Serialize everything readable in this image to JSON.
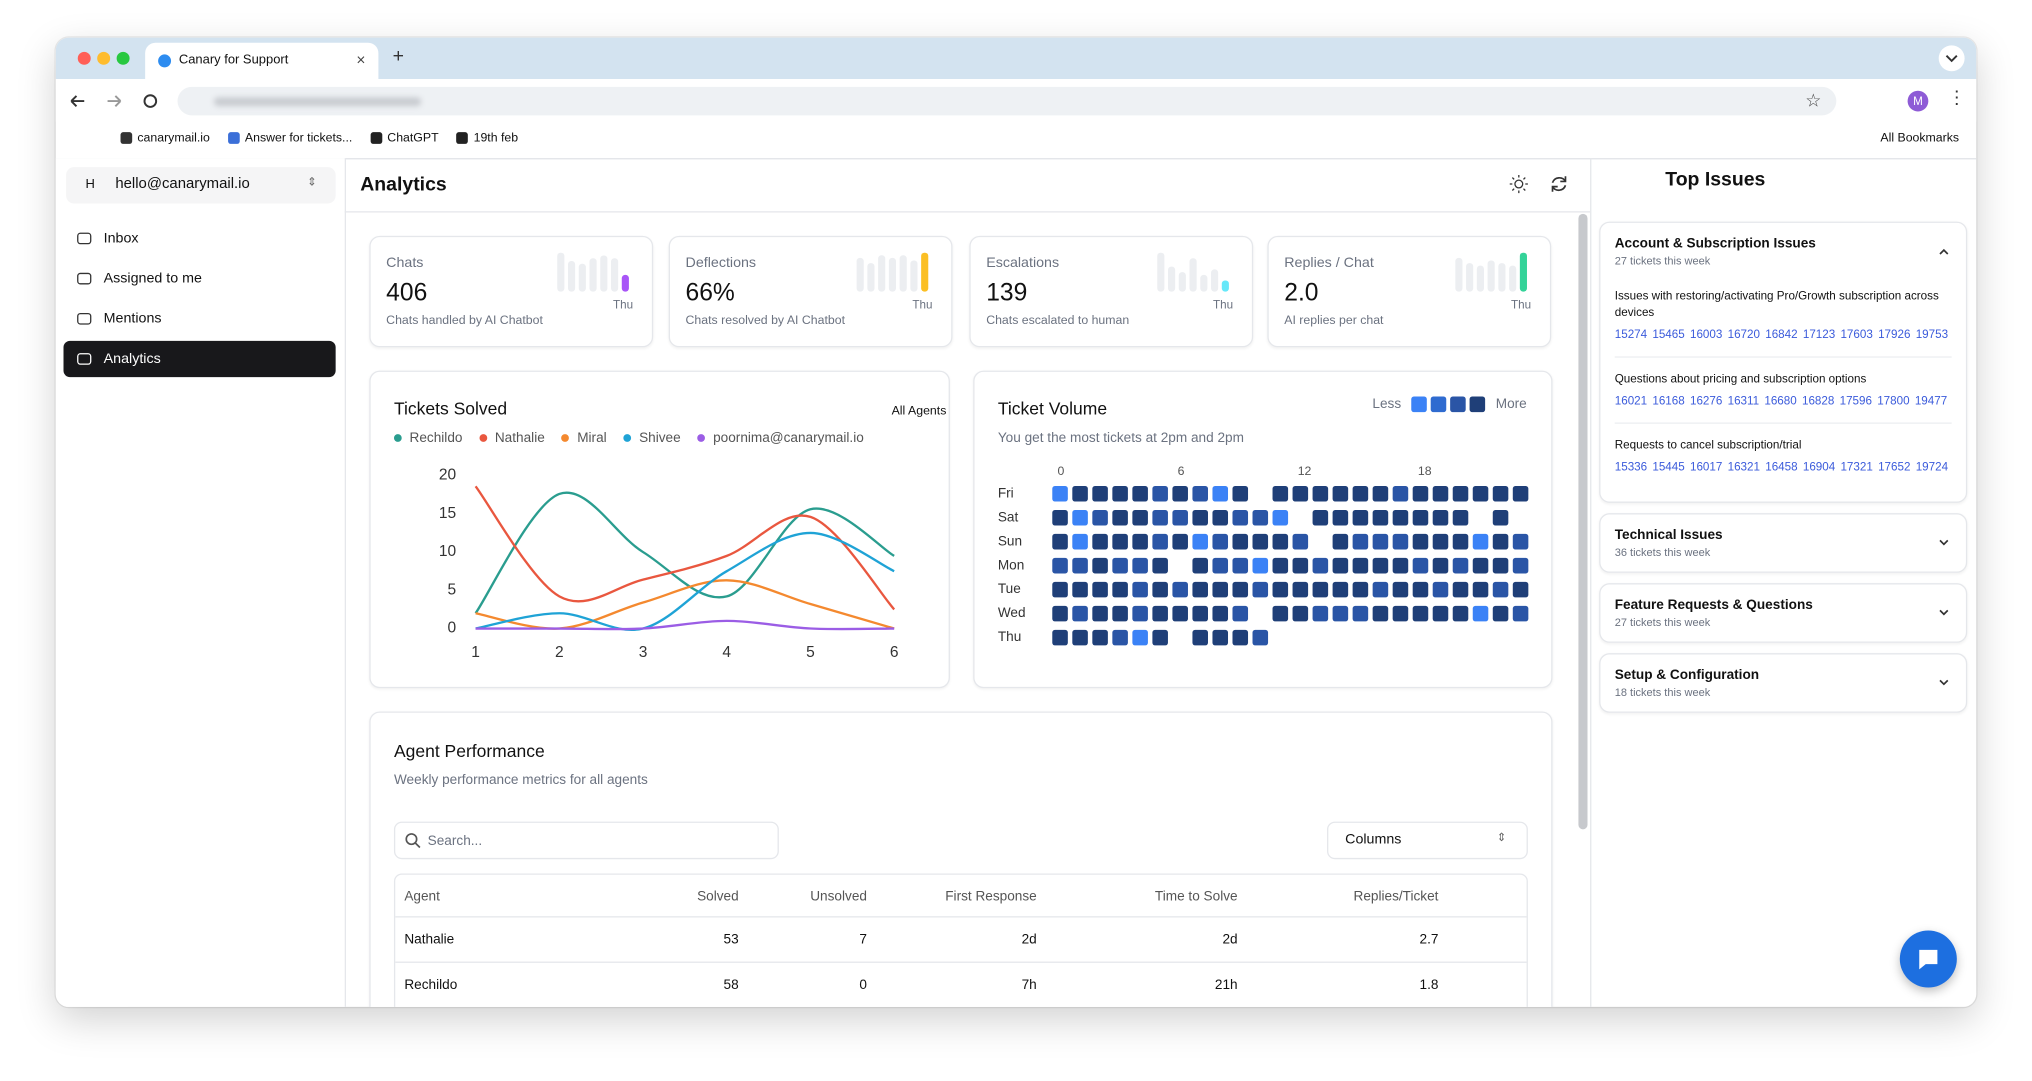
{
  "browser": {
    "tab_title": "Canary for Support",
    "bookmarks": [
      "canarymail.io",
      "Answer for tickets...",
      "ChatGPT",
      "19th feb"
    ],
    "all_bookmarks": "All Bookmarks",
    "profile_initial": "M"
  },
  "sidebar": {
    "account_initial": "H",
    "account": "hello@canarymail.io",
    "nav": [
      "Inbox",
      "Assigned to me",
      "Mentions",
      "Analytics"
    ],
    "active": 3
  },
  "header": {
    "title": "Analytics"
  },
  "stats": [
    {
      "label": "Chats",
      "value": "406",
      "caption": "Chats handled by AI Chatbot",
      "day": "Thu",
      "color": "#a855f7",
      "trend": [
        28,
        22,
        20,
        24,
        26,
        24,
        12
      ]
    },
    {
      "label": "Deflections",
      "value": "66%",
      "caption": "Chats resolved by AI Chatbot",
      "day": "Thu",
      "color": "#fbbf24",
      "trend": [
        26,
        22,
        28,
        26,
        28,
        24,
        30
      ]
    },
    {
      "label": "Escalations",
      "value": "139",
      "caption": "Chats escalated to human",
      "day": "Thu",
      "color": "#67e8f9",
      "trend": [
        28,
        18,
        14,
        24,
        12,
        16,
        8
      ]
    },
    {
      "label": "Replies / Chat",
      "value": "2.0",
      "caption": "AI replies per chat",
      "day": "Thu",
      "color": "#34d399",
      "trend": [
        26,
        22,
        20,
        24,
        22,
        20,
        30
      ]
    }
  ],
  "chart_data": [
    {
      "type": "line",
      "title": "Tickets Solved",
      "filter": "All Agents",
      "x": [
        1,
        2,
        3,
        4,
        5,
        6
      ],
      "xlim": [
        1,
        6
      ],
      "xticks": [
        1,
        2,
        3,
        4,
        5,
        6
      ],
      "ylim": [
        0,
        20
      ],
      "yticks": [
        0,
        5,
        10,
        15,
        20
      ],
      "series": [
        {
          "name": "Rechildo",
          "color": "#2a9d8f",
          "values": [
            2,
            17.6,
            10,
            4.2,
            15.6,
            9.5
          ]
        },
        {
          "name": "Nathalie",
          "color": "#e9573f",
          "values": [
            18.6,
            4.2,
            6.4,
            9.5,
            14.6,
            2.5
          ]
        },
        {
          "name": "Miral",
          "color": "#f4892f",
          "values": [
            2,
            0,
            3.4,
            6.3,
            3.2,
            0
          ]
        },
        {
          "name": "Shivee",
          "color": "#1fa3d6",
          "values": [
            0,
            2,
            0,
            7.5,
            12.5,
            7.5
          ]
        },
        {
          "name": "poornima@canarymail.io",
          "color": "#9b5de5",
          "values": [
            0,
            0,
            0,
            1,
            0,
            0
          ]
        }
      ]
    },
    {
      "type": "heatmap",
      "title": "Ticket Volume",
      "subtitle": "You get the most tickets at 2pm and 2pm",
      "legend": {
        "low": "Less",
        "high": "More"
      },
      "colors": [
        "#3b82f6",
        "#2f6bd0",
        "#2a55a6",
        "#1f3f78"
      ],
      "xlim": [
        0,
        23
      ],
      "xticks": [
        0,
        6,
        12,
        18
      ],
      "categories": [
        "Fri",
        "Sat",
        "Sun",
        "Mon",
        "Tue",
        "Wed",
        "Thu"
      ],
      "values": [
        [
          1,
          4,
          4,
          4,
          4,
          3,
          4,
          3,
          1,
          4,
          null,
          4,
          4,
          4,
          4,
          4,
          4,
          3,
          4,
          4,
          4,
          4,
          4,
          4
        ],
        [
          4,
          1,
          3,
          4,
          4,
          3,
          3,
          4,
          4,
          3,
          3,
          1,
          null,
          4,
          4,
          4,
          4,
          4,
          4,
          4,
          4,
          null,
          4,
          null
        ],
        [
          4,
          1,
          4,
          4,
          4,
          3,
          4,
          1,
          3,
          4,
          4,
          4,
          3,
          null,
          4,
          3,
          3,
          3,
          4,
          4,
          4,
          1,
          4,
          3
        ],
        [
          3,
          3,
          4,
          3,
          3,
          4,
          null,
          4,
          3,
          3,
          1,
          4,
          4,
          3,
          4,
          4,
          4,
          4,
          3,
          4,
          3,
          4,
          4,
          3
        ],
        [
          4,
          4,
          4,
          4,
          3,
          4,
          3,
          4,
          4,
          4,
          3,
          4,
          4,
          4,
          4,
          4,
          3,
          4,
          4,
          3,
          4,
          4,
          3,
          4
        ],
        [
          4,
          3,
          4,
          4,
          3,
          4,
          4,
          4,
          4,
          3,
          null,
          4,
          4,
          3,
          3,
          3,
          4,
          4,
          4,
          4,
          4,
          1,
          4,
          3
        ],
        [
          4,
          4,
          4,
          3,
          1,
          4,
          null,
          4,
          4,
          4,
          3,
          null,
          null,
          null,
          null,
          null,
          null,
          null,
          null,
          null,
          null,
          null,
          null,
          null
        ]
      ]
    }
  ],
  "table": {
    "title": "Agent Performance",
    "subtitle": "Weekly performance metrics for all agents",
    "search_placeholder": "Search...",
    "columns_button": "Columns",
    "headers": [
      "Agent",
      "Solved",
      "Unsolved",
      "First Response",
      "Time to Solve",
      "Replies/Ticket"
    ],
    "rows": [
      [
        "Nathalie",
        53,
        7,
        "2d",
        "2d",
        2.7
      ],
      [
        "Rechildo",
        58,
        0,
        "7h",
        "21h",
        1.8
      ]
    ]
  },
  "top_issues": {
    "title": "Top Issues",
    "groups": [
      {
        "title": "Account & Subscription Issues",
        "subtitle": "27 tickets this week",
        "expanded": true,
        "items": [
          {
            "text": "Issues with restoring/activating Pro/Growth subscription across devices",
            "tickets": [
              "15274",
              "15465",
              "16003",
              "16720",
              "16842",
              "17123",
              "17603",
              "17926",
              "19753"
            ]
          },
          {
            "text": "Questions about pricing and subscription options",
            "tickets": [
              "16021",
              "16168",
              "16276",
              "16311",
              "16680",
              "16828",
              "17596",
              "17800",
              "19477"
            ]
          },
          {
            "text": "Requests to cancel subscription/trial",
            "tickets": [
              "15336",
              "15445",
              "16017",
              "16321",
              "16458",
              "16904",
              "17321",
              "17652",
              "19724"
            ]
          }
        ]
      },
      {
        "title": "Technical Issues",
        "subtitle": "36 tickets this week",
        "expanded": false,
        "items": []
      },
      {
        "title": "Feature Requests & Questions",
        "subtitle": "27 tickets this week",
        "expanded": false,
        "items": []
      },
      {
        "title": "Setup & Configuration",
        "subtitle": "18 tickets this week",
        "expanded": false,
        "items": []
      }
    ]
  }
}
